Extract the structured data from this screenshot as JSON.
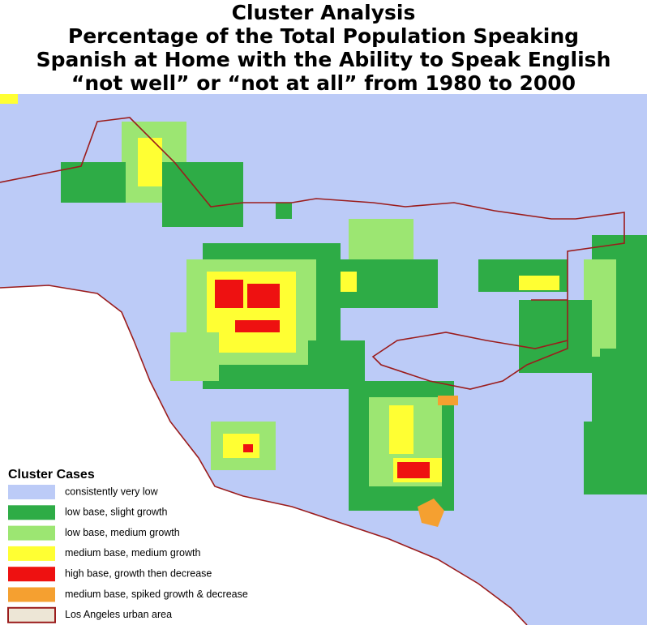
{
  "header": {
    "title_lines": [
      "Cluster Analysis",
      "Percentage of the Total Population Speaking",
      "Spanish at Home with the Ability to Speak English",
      "“not well” or “not at all” from 1980 to 2000"
    ]
  },
  "legend": {
    "title": "Cluster Cases",
    "items": [
      {
        "label": "consistently very low",
        "color": "#bccbf7"
      },
      {
        "label": "low base, slight growth",
        "color": "#2eac46"
      },
      {
        "label": "low base, medium growth",
        "color": "#9ce672"
      },
      {
        "label": "medium base, medium growth",
        "color": "#ffff33"
      },
      {
        "label": "high base, growth then decrease",
        "color": "#ee1111"
      },
      {
        "label": "medium base, spiked growth & decrease",
        "color": "#f5a030"
      },
      {
        "label": "Los Angeles urban area",
        "color": "#ede6d6",
        "outline": "#9b1c1c"
      }
    ]
  }
}
